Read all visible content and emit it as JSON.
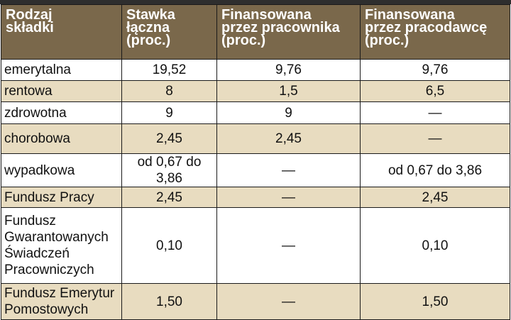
{
  "table": {
    "headers": [
      [
        "Rodzaj",
        "składki"
      ],
      [
        "Stawka",
        "łączna",
        "(proc.)"
      ],
      [
        "Finansowana",
        "przez pracownika",
        "(proc.)"
      ],
      [
        "Finansowana",
        "przez pracodawcę",
        "(proc.)"
      ]
    ],
    "rows": [
      {
        "name": "emerytalna",
        "total": "19,52",
        "employee": "9,76",
        "employer": "9,76"
      },
      {
        "name": "rentowa",
        "total": "8",
        "employee": "1,5",
        "employer": "6,5"
      },
      {
        "name": "zdrowotna",
        "total": "9",
        "employee": "9",
        "employer": "—"
      },
      {
        "name": "chorobowa",
        "total": "2,45",
        "employee": "2,45",
        "employer": "—"
      },
      {
        "name": "wypadkowa",
        "total": "od 0,67 do 3,86",
        "employee": "—",
        "employer": "od 0,67 do 3,86"
      },
      {
        "name": "Fundusz Pracy",
        "total": "2,45",
        "employee": "—",
        "employer": "2,45"
      },
      {
        "name_lines": [
          "Fundusz",
          "Gwarantowanych",
          "Świadczeń",
          "Pracowniczych"
        ],
        "total": "0,10",
        "employee": "—",
        "employer": "0,10"
      },
      {
        "name_lines": [
          "Fundusz Emerytur",
          "Pomostowych"
        ],
        "total": "1,50",
        "employee": "—",
        "employer": "1,50"
      }
    ]
  },
  "colors": {
    "header_bg": "#7a684b",
    "row_tan": "#e8dcc0",
    "row_white": "#ffffff",
    "border": "#1a1a1a"
  }
}
